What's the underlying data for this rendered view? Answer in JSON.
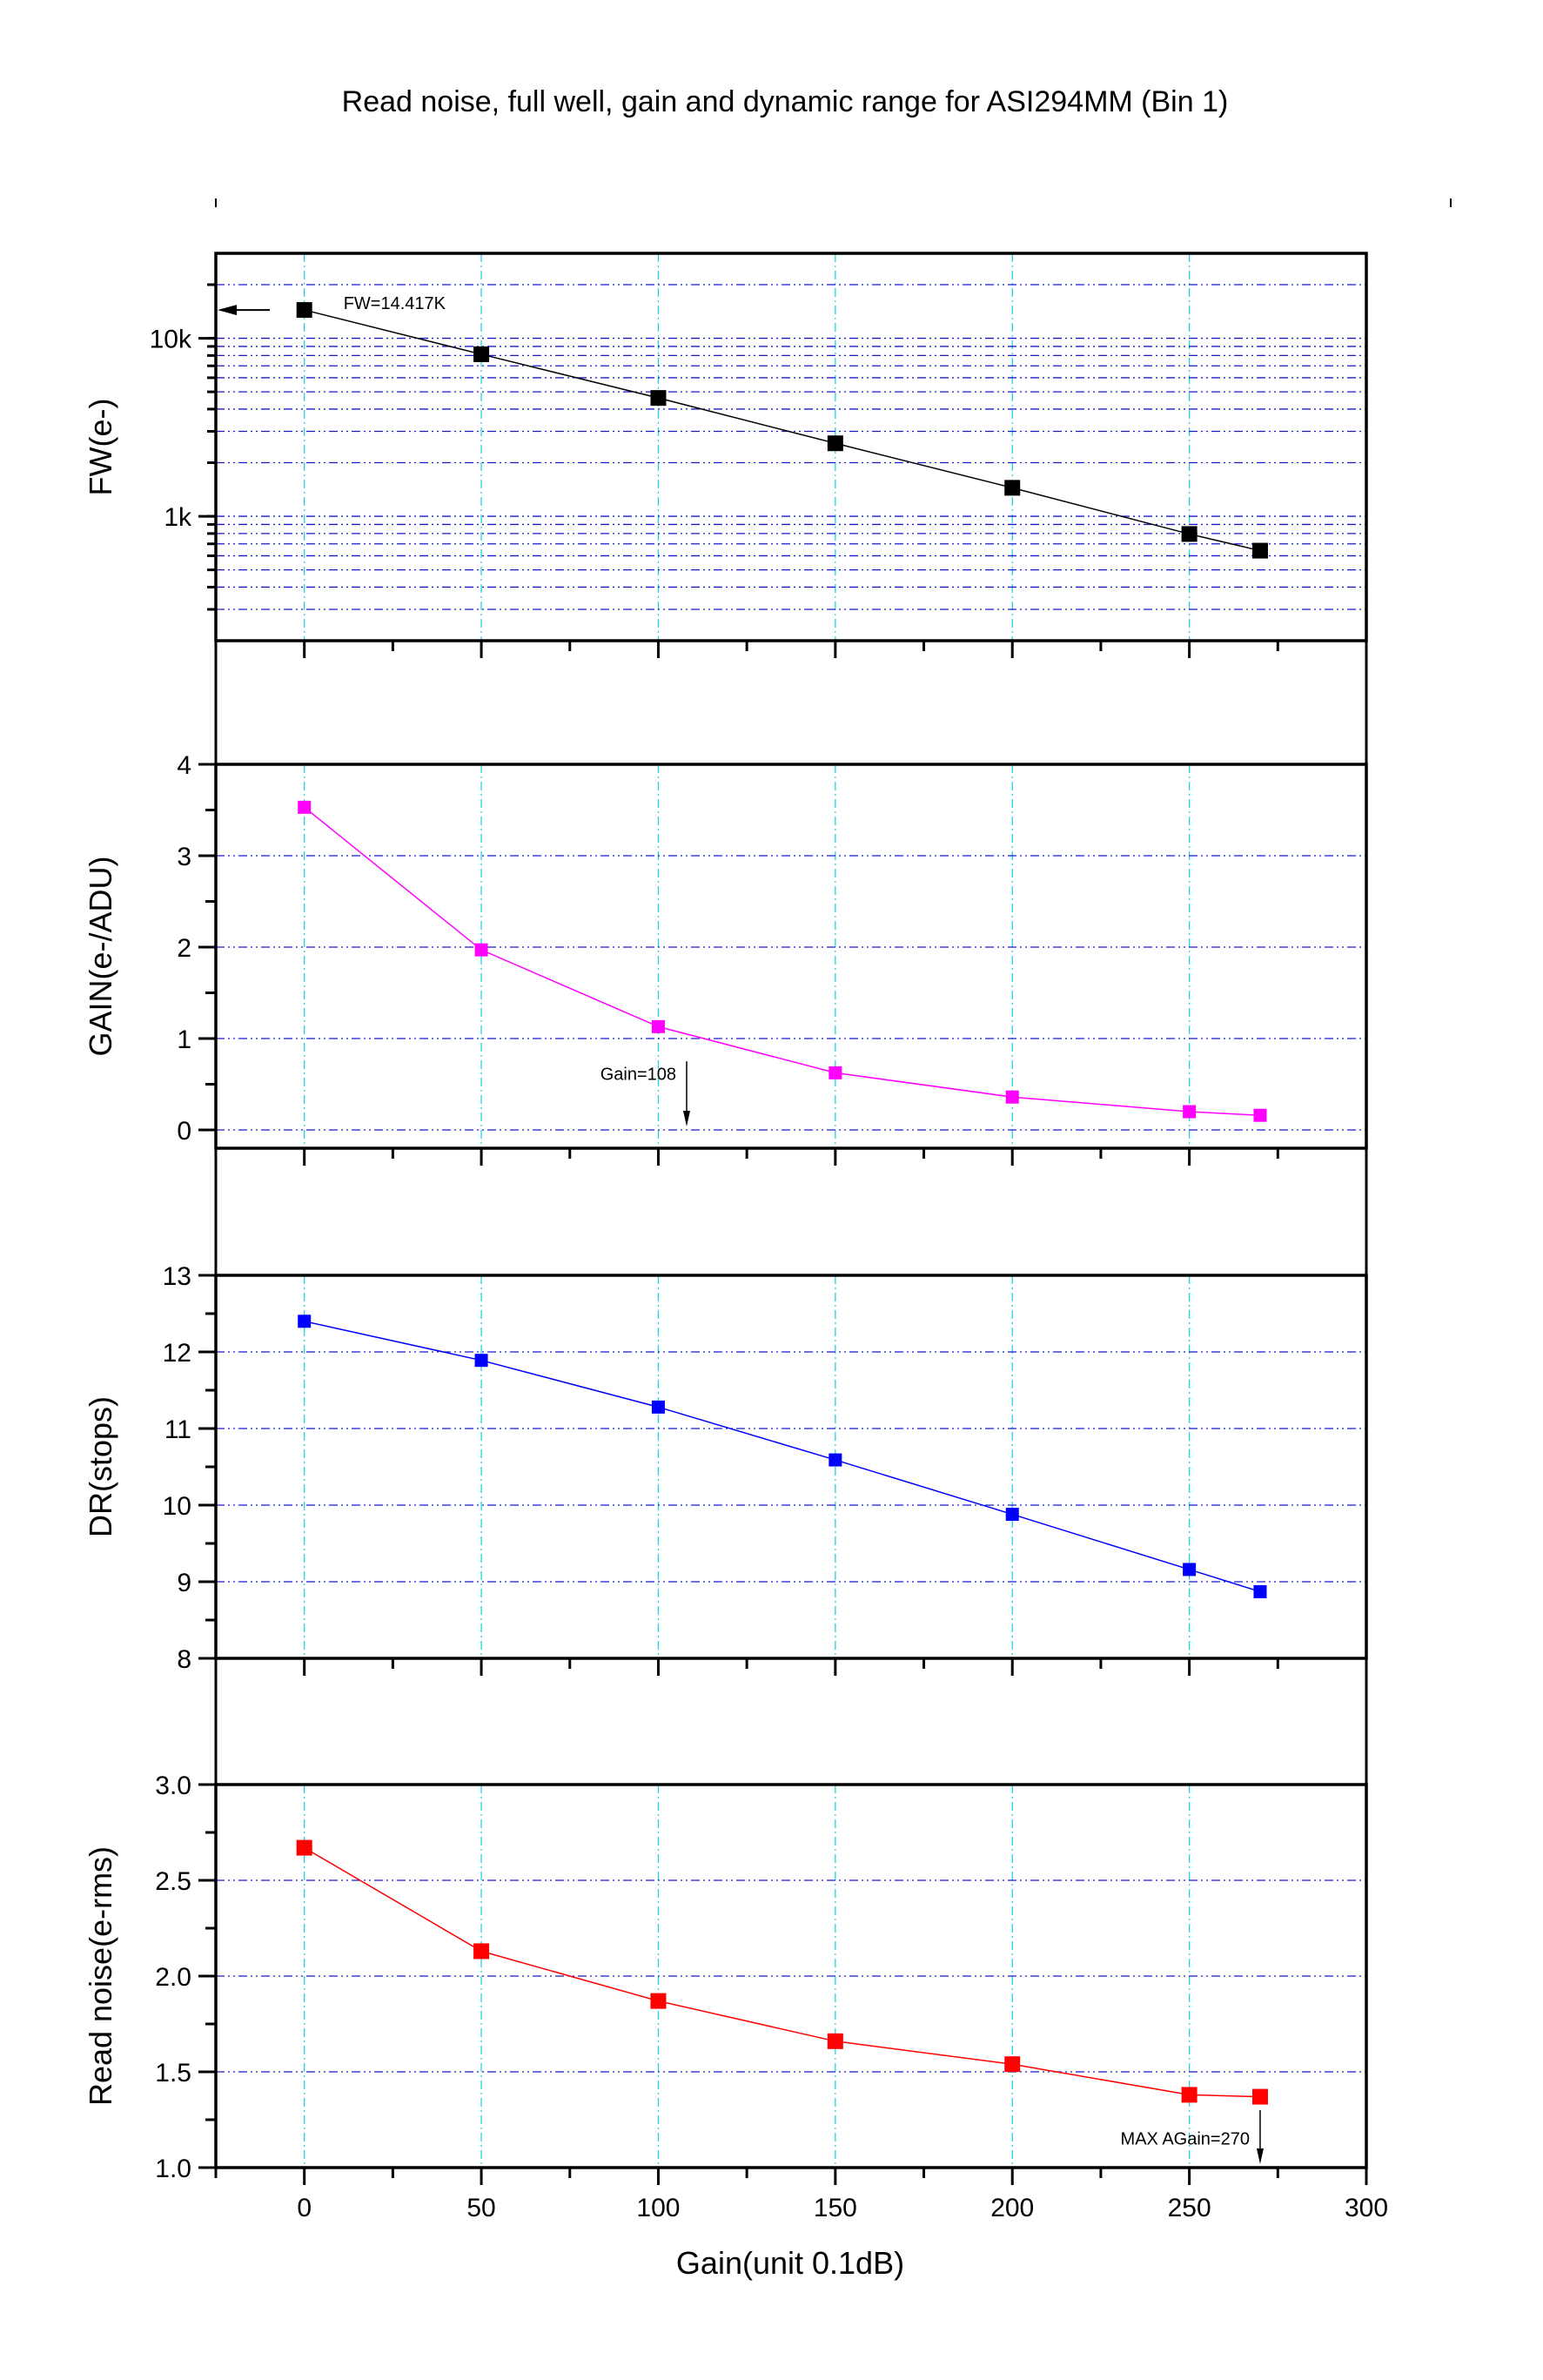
{
  "chart_data": {
    "type": "line",
    "title": "Read noise, full well, gain and dynamic range for ASI294MM (Bin 1)",
    "xlabel": "Gain(unit 0.1dB)",
    "xlim": [
      -25,
      300
    ],
    "x_ticks": [
      0,
      50,
      100,
      150,
      200,
      250,
      300
    ],
    "x_tick_labels": [
      "0",
      "50",
      "100",
      "150",
      "200",
      "250",
      "300"
    ],
    "x": [
      0,
      50,
      100,
      150,
      200,
      250,
      270
    ],
    "grid": true,
    "panels": [
      {
        "id": "fw",
        "ylabel": "FW(e-)",
        "yscale": "log",
        "ylim": [
          200,
          30000
        ],
        "y_ticks": [
          1000,
          10000
        ],
        "y_tick_labels": [
          "1k",
          "10k"
        ],
        "color": "#000000",
        "series": [
          {
            "name": "FW(e-)",
            "values": [
              14417,
              8130,
              4620,
              2570,
              1445,
              795,
              641
            ]
          }
        ],
        "annotations": [
          {
            "text": "FW=14.417K",
            "x": 0,
            "y": 14417,
            "arrow": "left"
          }
        ]
      },
      {
        "id": "gain",
        "ylabel": "GAIN(e-/ADU)",
        "yscale": "linear",
        "ylim": [
          -0.2,
          4
        ],
        "y_ticks": [
          0,
          1,
          2,
          3,
          4
        ],
        "y_tick_labels": [
          "0",
          "1",
          "2",
          "3",
          "4"
        ],
        "color": "#ff00ff",
        "series": [
          {
            "name": "GAIN(e-/ADU)",
            "values": [
              3.53,
              1.97,
              1.13,
              0.625,
              0.36,
              0.2,
              0.16
            ]
          }
        ],
        "annotations": [
          {
            "text": "Gain=108",
            "x": 108,
            "y": 0,
            "arrow": "down"
          }
        ]
      },
      {
        "id": "dr",
        "ylabel": "DR(stops)",
        "yscale": "linear",
        "ylim": [
          8,
          13
        ],
        "y_ticks": [
          8,
          9,
          10,
          11,
          12,
          13
        ],
        "y_tick_labels": [
          "8",
          "9",
          "10",
          "11",
          "12",
          "13"
        ],
        "color": "#0000ff",
        "series": [
          {
            "name": "DR(stops)",
            "values": [
              12.4,
              11.89,
              11.28,
              10.59,
              9.88,
              9.16,
              8.87
            ]
          }
        ],
        "annotations": []
      },
      {
        "id": "rn",
        "ylabel": "Read noise(e-rms)",
        "yscale": "linear",
        "ylim": [
          1.0,
          3.0
        ],
        "y_ticks": [
          1.0,
          1.5,
          2.0,
          2.5,
          3.0
        ],
        "y_tick_labels": [
          "1.0",
          "1.5",
          "2.0",
          "2.5",
          "3.0"
        ],
        "color": "#ff0000",
        "series": [
          {
            "name": "Read noise(e-rms)",
            "values": [
              2.67,
              2.13,
              1.87,
              1.66,
              1.54,
              1.38,
              1.37
            ]
          }
        ],
        "annotations": [
          {
            "text": "MAX AGain=270",
            "x": 270,
            "y": 1.0,
            "arrow": "down"
          }
        ]
      }
    ]
  }
}
